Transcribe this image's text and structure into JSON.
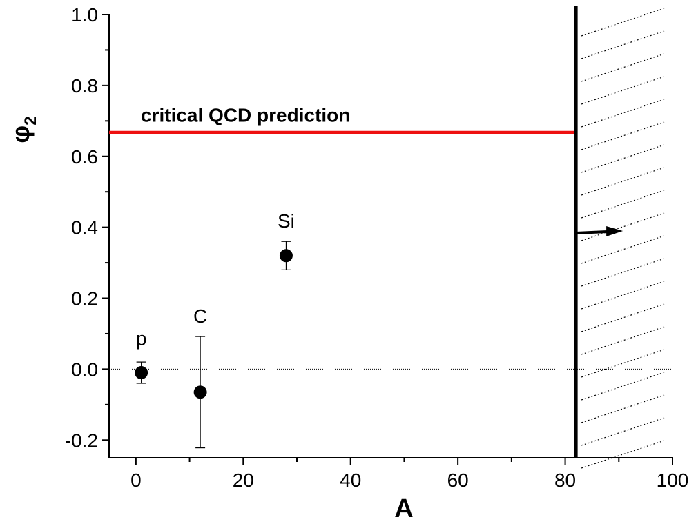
{
  "chart_data": {
    "type": "scatter",
    "x_label": "A",
    "y_label": "φ",
    "y_label_sub": "2",
    "xlim": [
      -5,
      100
    ],
    "ylim": [
      -0.25,
      1.0
    ],
    "xticks": [
      0,
      20,
      40,
      60,
      80,
      100
    ],
    "xminorticks": [
      10,
      30,
      50,
      70,
      90
    ],
    "yticks": [
      {
        "value": -0.2,
        "label": "-0.2"
      },
      {
        "value": 0,
        "label": "0.0"
      },
      0.2,
      0.4,
      0.6,
      0.8,
      {
        "value": 1,
        "label": "1.0"
      }
    ],
    "yminorticks": [
      -0.1,
      0.1,
      0.3,
      0.5,
      0.7,
      0.9
    ],
    "zero_line": true,
    "series": [
      {
        "color": "#000000",
        "labels": [
          "p",
          "C",
          "Si"
        ],
        "x": [
          1,
          12,
          28
        ],
        "values": [
          -0.01,
          -0.065,
          0.32
        ],
        "errors": [
          0.03,
          0.157,
          0.04
        ]
      }
    ],
    "reference_line": {
      "value": 0.667,
      "label": "critical QCD prediction",
      "color": "#ee1111",
      "x_end": 82
    },
    "boundary_x": 82
  }
}
